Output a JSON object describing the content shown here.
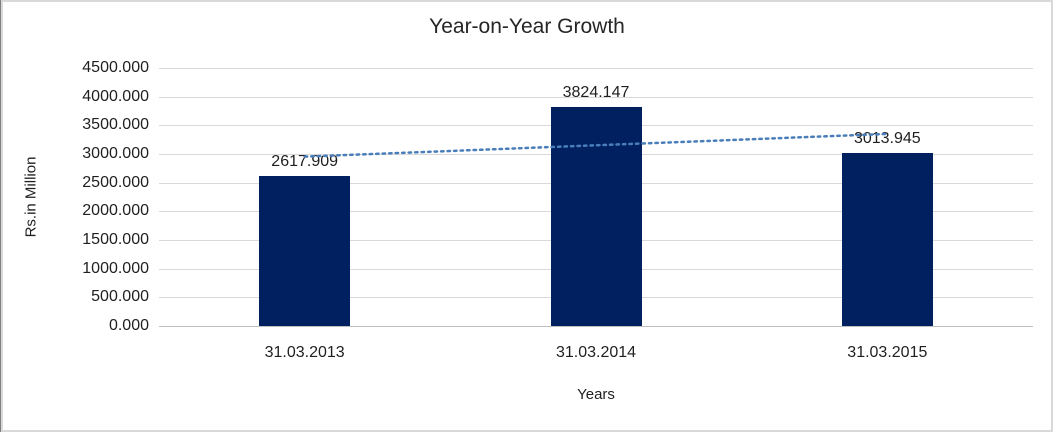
{
  "chart_data": {
    "type": "bar",
    "title": "Year-on-Year Growth",
    "categories": [
      "31.03.2013",
      "31.03.2014",
      "31.03.2015"
    ],
    "values": [
      2617.909,
      3824.147,
      3013.945
    ],
    "value_labels": [
      "2617.909",
      "3824.147",
      "3013.945"
    ],
    "xlabel": "Years",
    "ylabel": "Rs.in Million",
    "ylim": [
      0,
      4500
    ],
    "ytick_labels": [
      "0.000",
      "500.000",
      "1000.000",
      "1500.000",
      "2000.000",
      "2500.000",
      "3000.000",
      "3500.000",
      "4000.000",
      "4500.000"
    ],
    "grid": true,
    "legend": "none",
    "bar_color": "#002060",
    "gridline_color": "#d9d9d9",
    "trendline": {
      "type": "linear",
      "style": "dotted",
      "color": "#4a7ebb",
      "start_value": 2954,
      "end_value": 3350
    }
  }
}
